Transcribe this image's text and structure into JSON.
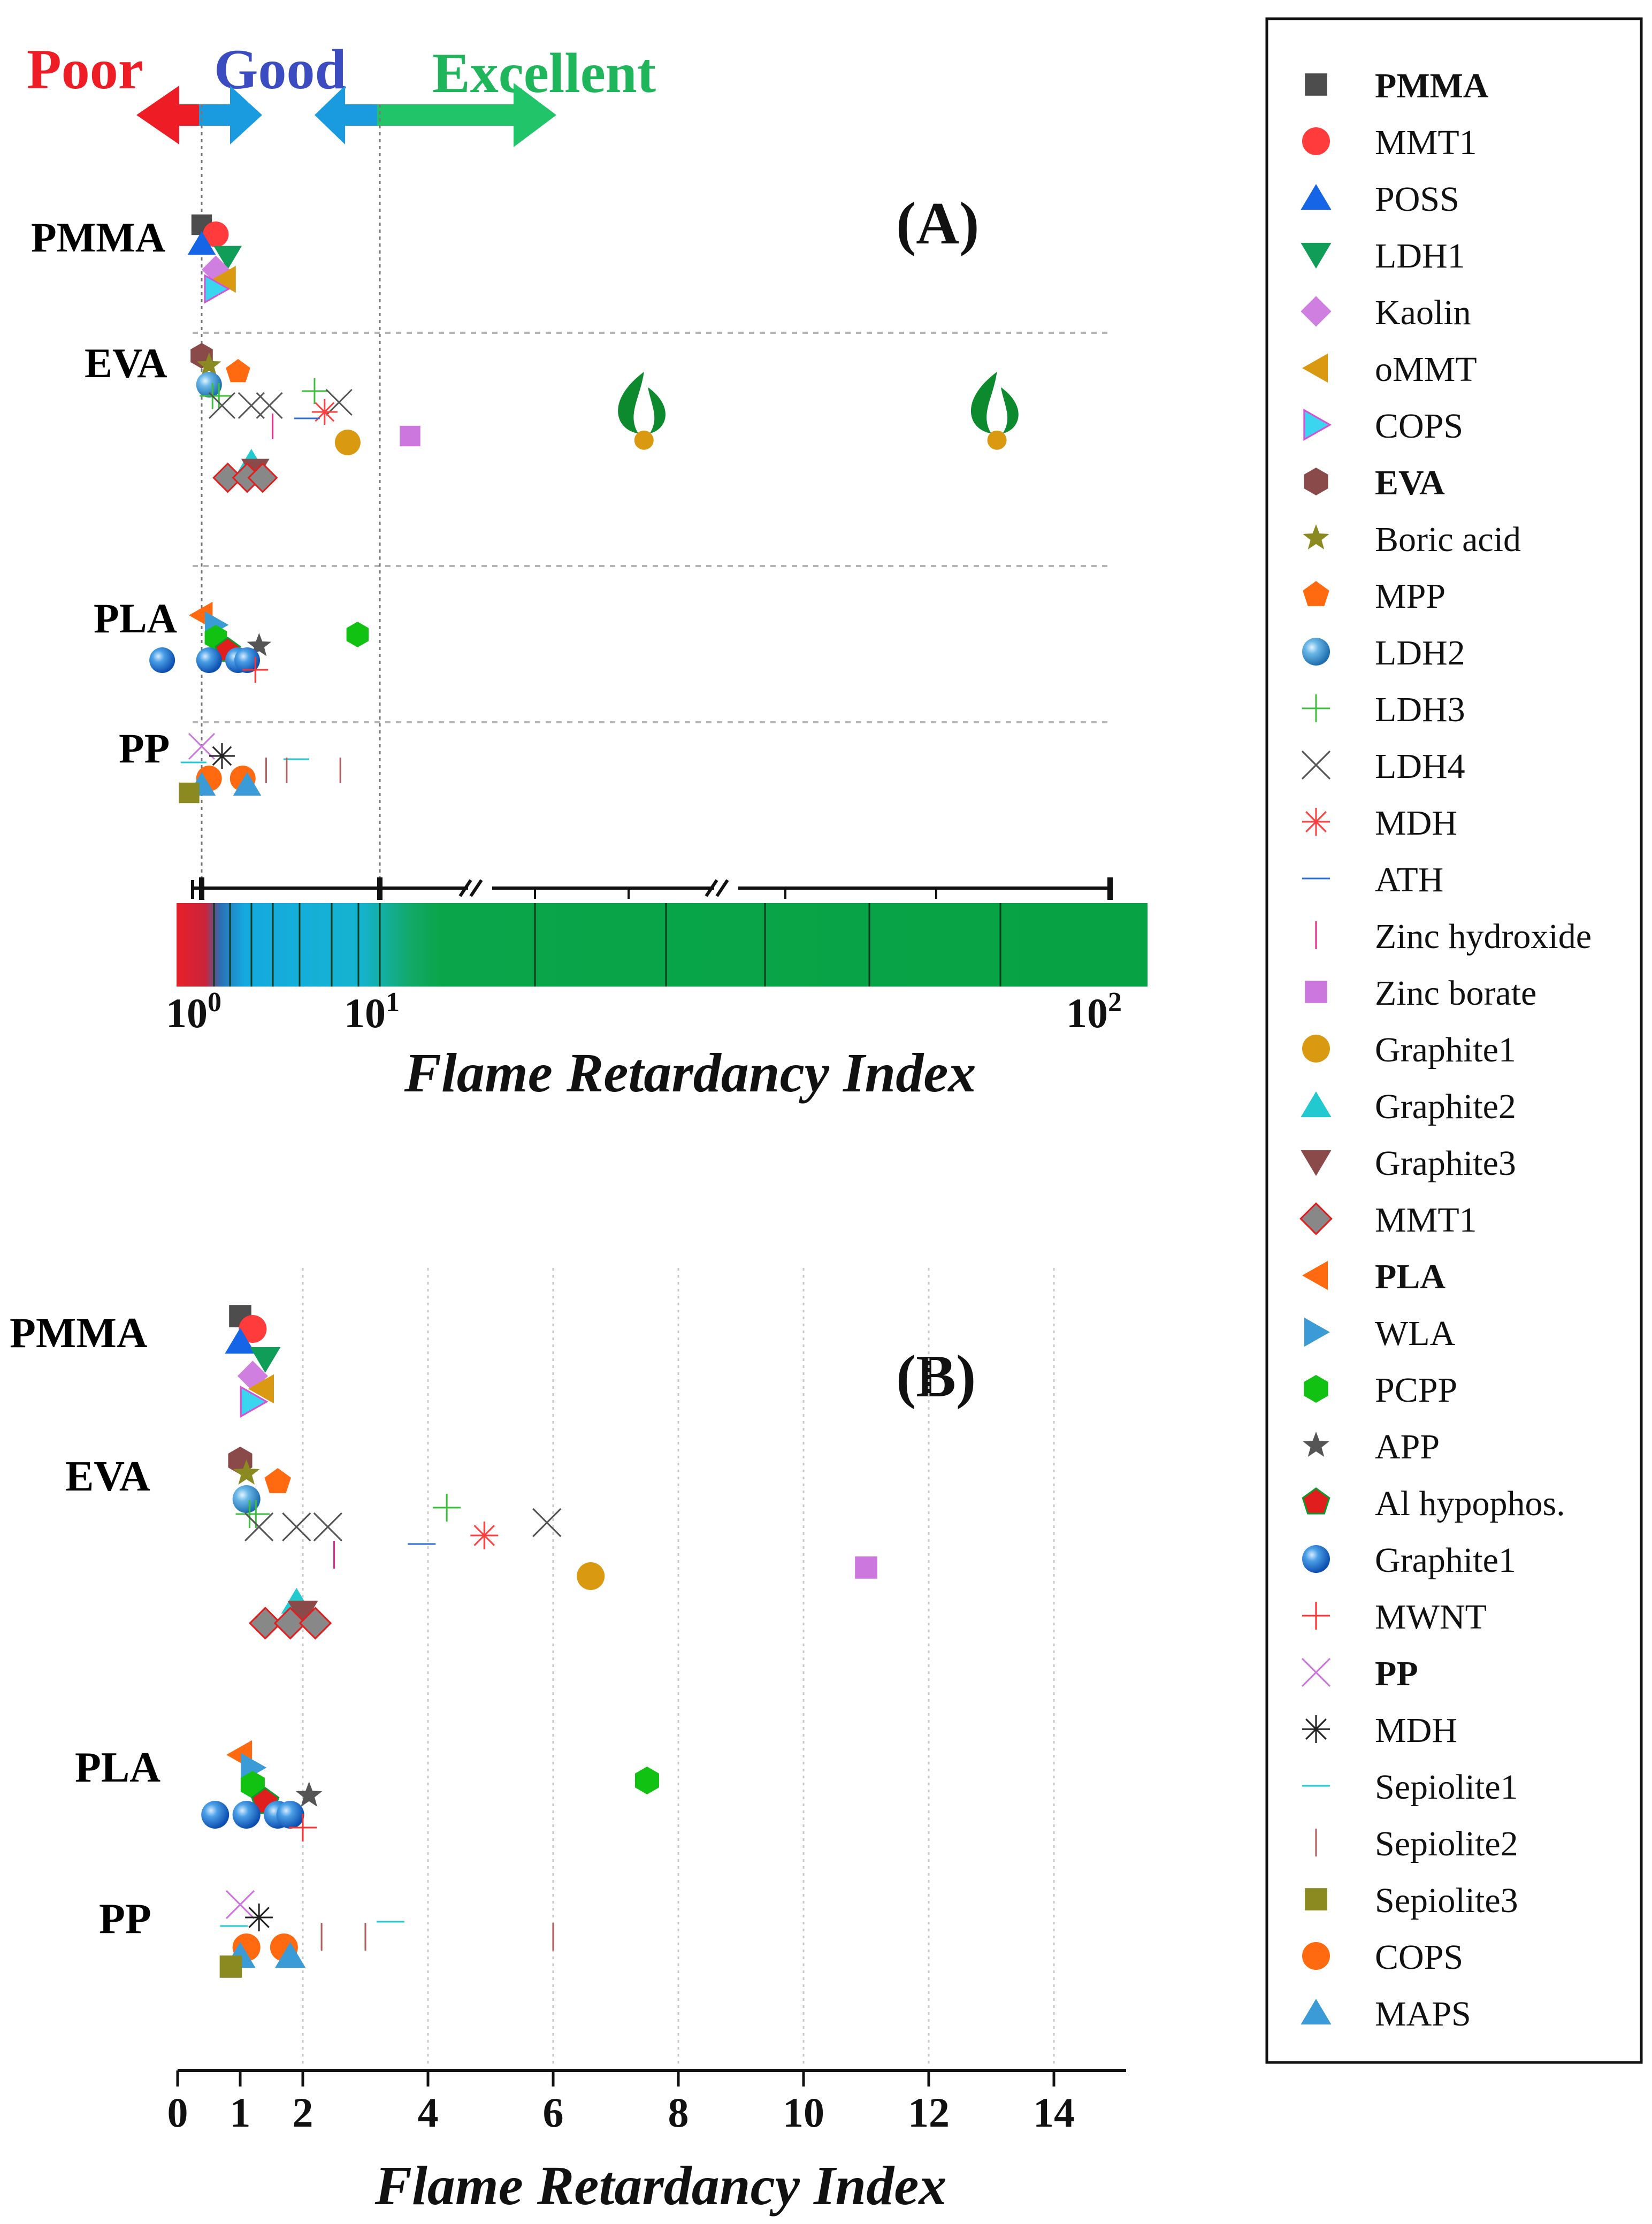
{
  "header": {
    "poor": "Poor",
    "good": "Good",
    "excellent": "Excellent",
    "colors": {
      "poor": "#ee1c25",
      "good": "#3b4cc0",
      "excellent": "#1fb55a",
      "arrow_red": "#ee1c25",
      "arrow_blue": "#1a9be0",
      "arrow_green": "#22c46a"
    }
  },
  "legend": {
    "items": [
      {
        "label": "PMMA",
        "marker": "square",
        "color": "#4d4d4d",
        "bold": true
      },
      {
        "label": "MMT1",
        "marker": "circle",
        "color": "#ff3b3b"
      },
      {
        "label": "POSS",
        "marker": "triangle-up",
        "color": "#1565e6"
      },
      {
        "label": "LDH1",
        "marker": "triangle-down",
        "color": "#0f9d58"
      },
      {
        "label": "Kaolin",
        "marker": "diamond",
        "color": "#cf7fe0"
      },
      {
        "label": "oMMT",
        "marker": "triangle-left",
        "color": "#d99a12"
      },
      {
        "label": "COPS",
        "marker": "triangle-right-outline",
        "color": "#d651d6"
      },
      {
        "label": "EVA",
        "marker": "hexagon",
        "color": "#8b4a4a",
        "bold": true
      },
      {
        "label": "Boric acid",
        "marker": "star",
        "color": "#8a8a20"
      },
      {
        "label": "MPP",
        "marker": "pentagon",
        "color": "#ff6a10"
      },
      {
        "label": "LDH2",
        "marker": "sphere",
        "color": "#3a9bd6"
      },
      {
        "label": "LDH3",
        "marker": "plus",
        "color": "#3cc03c"
      },
      {
        "label": "LDH4",
        "marker": "x",
        "color": "#555555"
      },
      {
        "label": "MDH",
        "marker": "asterisk",
        "color": "#ff4040"
      },
      {
        "label": "ATH",
        "marker": "hline",
        "color": "#2a6fd6"
      },
      {
        "label": "Zinc hydroxide",
        "marker": "vline",
        "color": "#e0308a"
      },
      {
        "label": "Zinc borate",
        "marker": "square",
        "color": "#cc77dd"
      },
      {
        "label": "Graphite1",
        "marker": "circle",
        "color": "#d99a12"
      },
      {
        "label": "Graphite2",
        "marker": "triangle-up",
        "color": "#22c9cf"
      },
      {
        "label": "Graphite3",
        "marker": "triangle-down",
        "color": "#8b4a4a"
      },
      {
        "label": "MMT1",
        "marker": "diamond-outline",
        "color": "#888888"
      },
      {
        "label": "PLA",
        "marker": "triangle-left",
        "color": "#ff6a10",
        "bold": true
      },
      {
        "label": "WLA",
        "marker": "triangle-right",
        "color": "#3a9bd6"
      },
      {
        "label": "PCPP",
        "marker": "hexagon",
        "color": "#12c212"
      },
      {
        "label": "APP",
        "marker": "star",
        "color": "#555555"
      },
      {
        "label": "Al hypophos.",
        "marker": "pentagon-outline",
        "color": "#e01e1e"
      },
      {
        "label": "Graphite1",
        "marker": "sphere",
        "color": "#1f6fe6"
      },
      {
        "label": "MWNT",
        "marker": "plus",
        "color": "#ff3030"
      },
      {
        "label": "PP",
        "marker": "x",
        "color": "#cc77dd",
        "bold": true
      },
      {
        "label": "MDH",
        "marker": "asterisk",
        "color": "#222222"
      },
      {
        "label": "Sepiolite1",
        "marker": "hline",
        "color": "#22c9cf"
      },
      {
        "label": "Sepiolite2",
        "marker": "vline",
        "color": "#b06060"
      },
      {
        "label": "Sepiolite3",
        "marker": "square",
        "color": "#8a8a20"
      },
      {
        "label": "COPS",
        "marker": "circle",
        "color": "#ff6a10"
      },
      {
        "label": "MAPS",
        "marker": "triangle-up",
        "color": "#3a9bd6"
      }
    ]
  },
  "chart_data": [
    {
      "id": "A",
      "panel_label": "(A)",
      "type": "scatter",
      "xscale": "log",
      "xlabel": "Flame Retardancy Index",
      "xlim": [
        0.8,
        100
      ],
      "x_tick_labels": [
        {
          "base": "10",
          "exp": "0"
        },
        {
          "base": "10",
          "exp": "1"
        },
        {
          "base": "10",
          "exp": "2"
        }
      ],
      "groups": [
        "PMMA",
        "EVA",
        "PLA",
        "PP"
      ],
      "thresholds": [
        1,
        10
      ],
      "points": [
        {
          "name": "PMMA",
          "group": "PMMA",
          "marker": "square",
          "color": "#4d4d4d",
          "x": 1.0,
          "lane": 0.0
        },
        {
          "name": "MMT1",
          "group": "PMMA",
          "marker": "circle",
          "color": "#ff3b3b",
          "x": 1.2,
          "lane": 0.3
        },
        {
          "name": "POSS",
          "group": "PMMA",
          "marker": "triangle-up",
          "color": "#1565e6",
          "x": 1.0,
          "lane": 0.6
        },
        {
          "name": "LDH1",
          "group": "PMMA",
          "marker": "triangle-down",
          "color": "#0f9d58",
          "x": 1.4,
          "lane": 1.0
        },
        {
          "name": "Kaolin",
          "group": "PMMA",
          "marker": "diamond",
          "color": "#cf7fe0",
          "x": 1.2,
          "lane": 1.4
        },
        {
          "name": "oMMT",
          "group": "PMMA",
          "marker": "triangle-left",
          "color": "#d99a12",
          "x": 1.35,
          "lane": 1.7
        },
        {
          "name": "COPS",
          "group": "PMMA",
          "marker": "triangle-right-outline",
          "color": "#d651d6",
          "x": 1.2,
          "lane": 2.0
        },
        {
          "name": "EVA",
          "group": "EVA",
          "marker": "hexagon",
          "color": "#8b4a4a",
          "x": 1.0,
          "lane": 0.0
        },
        {
          "name": "Boric acid",
          "group": "EVA",
          "marker": "star",
          "color": "#8a8a20",
          "x": 1.1,
          "lane": 0.3
        },
        {
          "name": "MPP",
          "group": "EVA",
          "marker": "pentagon",
          "color": "#ff6a10",
          "x": 1.6,
          "lane": 0.5
        },
        {
          "name": "LDH2",
          "group": "EVA",
          "marker": "sphere",
          "color": "#3a9bd6",
          "x": 1.1,
          "lane": 0.9
        },
        {
          "name": "LDH3",
          "group": "EVA",
          "marker": "plus",
          "color": "#3cc03c",
          "x": 1.15,
          "lane": 1.25
        },
        {
          "name": "LDH3",
          "group": "EVA",
          "marker": "plus",
          "color": "#3cc03c",
          "x": 1.25,
          "lane": 1.25
        },
        {
          "name": "LDH3",
          "group": "EVA",
          "marker": "plus",
          "color": "#3cc03c",
          "x": 4.3,
          "lane": 1.1
        },
        {
          "name": "LDH4",
          "group": "EVA",
          "marker": "x",
          "color": "#555555",
          "x": 1.3,
          "lane": 1.55
        },
        {
          "name": "LDH4",
          "group": "EVA",
          "marker": "x",
          "color": "#555555",
          "x": 1.9,
          "lane": 1.55
        },
        {
          "name": "LDH4",
          "group": "EVA",
          "marker": "x",
          "color": "#555555",
          "x": 2.4,
          "lane": 1.55
        },
        {
          "name": "LDH4",
          "group": "EVA",
          "marker": "x",
          "color": "#555555",
          "x": 5.9,
          "lane": 1.45
        },
        {
          "name": "MDH",
          "group": "EVA",
          "marker": "asterisk",
          "color": "#ff4040",
          "x": 4.9,
          "lane": 1.75
        },
        {
          "name": "ATH",
          "group": "EVA",
          "marker": "hline",
          "color": "#2a6fd6",
          "x": 3.9,
          "lane": 1.95
        },
        {
          "name": "Zinc hydroxide",
          "group": "EVA",
          "marker": "vline",
          "color": "#e0308a",
          "x": 2.5,
          "lane": 2.2
        },
        {
          "name": "Zinc borate",
          "group": "EVA",
          "marker": "square",
          "color": "#cc77dd",
          "x": 11.0,
          "lane": 2.5
        },
        {
          "name": "Graphite1",
          "group": "EVA",
          "marker": "circle",
          "color": "#d99a12",
          "x": 6.6,
          "lane": 2.7
        },
        {
          "name": "Graphite2",
          "group": "EVA",
          "marker": "triangle-up",
          "color": "#22c9cf",
          "x": 1.9,
          "lane": 3.3
        },
        {
          "name": "Graphite3",
          "group": "EVA",
          "marker": "triangle-down",
          "color": "#8b4a4a",
          "x": 2.0,
          "lane": 3.55
        },
        {
          "name": "MMT1",
          "group": "EVA",
          "marker": "diamond-outline",
          "color": "#888888",
          "x": 1.4,
          "lane": 3.8
        },
        {
          "name": "MMT1",
          "group": "EVA",
          "marker": "diamond-outline",
          "color": "#888888",
          "x": 1.8,
          "lane": 3.8
        },
        {
          "name": "MMT1",
          "group": "EVA",
          "marker": "diamond-outline",
          "color": "#888888",
          "x": 2.2,
          "lane": 3.8
        },
        {
          "name": "Graphite1 (flame)",
          "group": "EVA",
          "marker": "flame",
          "color": "#d99a12",
          "x": 23.0,
          "lane": 2.3
        },
        {
          "name": "Graphite1 (flame)",
          "group": "EVA",
          "marker": "flame",
          "color": "#d99a12",
          "x": 70.0,
          "lane": 2.3
        },
        {
          "name": "PLA",
          "group": "PLA",
          "marker": "triangle-left",
          "color": "#ff6a10",
          "x": 1.0,
          "lane": 0.0
        },
        {
          "name": "WLA",
          "group": "PLA",
          "marker": "triangle-right",
          "color": "#3a9bd6",
          "x": 1.2,
          "lane": 0.3
        },
        {
          "name": "PCPP",
          "group": "PLA",
          "marker": "hexagon",
          "color": "#12c212",
          "x": 7.5,
          "lane": 0.6
        },
        {
          "name": "PCPP",
          "group": "PLA",
          "marker": "hexagon",
          "color": "#12c212",
          "x": 1.2,
          "lane": 0.7
        },
        {
          "name": "APP",
          "group": "PLA",
          "marker": "star",
          "color": "#555555",
          "x": 2.1,
          "lane": 0.95
        },
        {
          "name": "Al hypophos.",
          "group": "PLA",
          "marker": "pentagon-outline",
          "color": "#e01e1e",
          "x": 1.4,
          "lane": 1.1
        },
        {
          "name": "Graphite1",
          "group": "PLA",
          "marker": "sphere",
          "color": "#1f6fe6",
          "x": 0.6,
          "lane": 1.4
        },
        {
          "name": "Graphite1",
          "group": "PLA",
          "marker": "sphere",
          "color": "#1f6fe6",
          "x": 1.1,
          "lane": 1.4
        },
        {
          "name": "Graphite1",
          "group": "PLA",
          "marker": "sphere",
          "color": "#1f6fe6",
          "x": 1.6,
          "lane": 1.4
        },
        {
          "name": "Graphite1",
          "group": "PLA",
          "marker": "sphere",
          "color": "#1f6fe6",
          "x": 1.8,
          "lane": 1.4
        },
        {
          "name": "MWNT",
          "group": "PLA",
          "marker": "plus",
          "color": "#ff3030",
          "x": 2.0,
          "lane": 1.7
        },
        {
          "name": "PP",
          "group": "PP",
          "marker": "x",
          "color": "#cc77dd",
          "x": 1.0,
          "lane": 0.0
        },
        {
          "name": "MDH",
          "group": "PP",
          "marker": "asterisk",
          "color": "#222222",
          "x": 1.3,
          "lane": 0.3
        },
        {
          "name": "Sepiolite1",
          "group": "PP",
          "marker": "hline",
          "color": "#22c9cf",
          "x": 0.9,
          "lane": 0.5
        },
        {
          "name": "Sepiolite1",
          "group": "PP",
          "marker": "hline",
          "color": "#22c9cf",
          "x": 3.4,
          "lane": 0.4
        },
        {
          "name": "Sepiolite2",
          "group": "PP",
          "marker": "vline",
          "color": "#b06060",
          "x": 2.3,
          "lane": 0.75
        },
        {
          "name": "Sepiolite2",
          "group": "PP",
          "marker": "vline",
          "color": "#b06060",
          "x": 3.0,
          "lane": 0.75
        },
        {
          "name": "Sepiolite2",
          "group": "PP",
          "marker": "vline",
          "color": "#b06060",
          "x": 6.0,
          "lane": 0.75
        },
        {
          "name": "COPS",
          "group": "PP",
          "marker": "circle",
          "color": "#ff6a10",
          "x": 1.1,
          "lane": 1.0
        },
        {
          "name": "COPS",
          "group": "PP",
          "marker": "circle",
          "color": "#ff6a10",
          "x": 1.7,
          "lane": 1.0
        },
        {
          "name": "MAPS",
          "group": "PP",
          "marker": "triangle-up",
          "color": "#3a9bd6",
          "x": 1.0,
          "lane": 1.2
        },
        {
          "name": "MAPS",
          "group": "PP",
          "marker": "triangle-up",
          "color": "#3a9bd6",
          "x": 1.8,
          "lane": 1.2
        },
        {
          "name": "Sepiolite3",
          "group": "PP",
          "marker": "square",
          "color": "#8a8a20",
          "x": 0.85,
          "lane": 1.45
        }
      ]
    },
    {
      "id": "B",
      "panel_label": "(B)",
      "type": "scatter",
      "xscale": "linear",
      "xlabel": "Flame Retardancy Index",
      "xlim": [
        0,
        15
      ],
      "xticks": [
        0,
        1,
        2,
        4,
        6,
        8,
        10,
        12,
        14
      ],
      "x_tick_labels": [
        "0",
        "1",
        "2",
        "4",
        "6",
        "8",
        "10",
        "12",
        "14"
      ],
      "grid": "vertical dotted",
      "groups": [
        "PMMA",
        "EVA",
        "PLA",
        "PP"
      ],
      "points_ref": "same points as panel A"
    }
  ]
}
